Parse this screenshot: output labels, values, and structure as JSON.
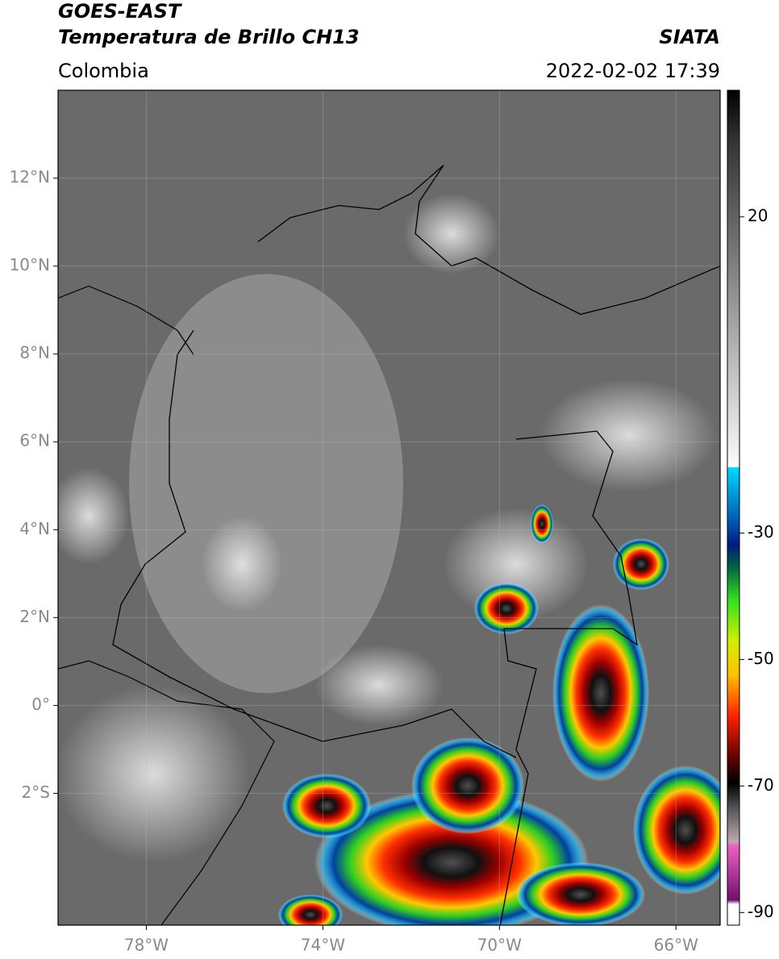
{
  "header": {
    "title_line1": "GOES-EAST",
    "title_line2": "Temperatura de Brillo CH13",
    "source": "SIATA",
    "region": "Colombia",
    "datetime": "2022-02-02 17:39"
  },
  "map": {
    "xlim": [
      -80,
      -65
    ],
    "ylim": [
      -5,
      14
    ],
    "xticks": [
      {
        "value": -78,
        "label": "78°W"
      },
      {
        "value": -74,
        "label": "74°W"
      },
      {
        "value": -70,
        "label": "70°W"
      },
      {
        "value": -66,
        "label": "66°W"
      }
    ],
    "yticks": [
      {
        "value": 12,
        "label": "12°N"
      },
      {
        "value": 10,
        "label": "10°N"
      },
      {
        "value": 8,
        "label": "8°N"
      },
      {
        "value": 6,
        "label": "6°N"
      },
      {
        "value": 4,
        "label": "4°N"
      },
      {
        "value": 2,
        "label": "2°N"
      },
      {
        "value": 0,
        "label": "0°"
      },
      {
        "value": -2,
        "label": "2°S"
      }
    ],
    "grid": true
  },
  "colorbar": {
    "clim": [
      -92,
      40
    ],
    "ticks": [
      20,
      -30,
      -50,
      -70,
      -90
    ]
  }
}
